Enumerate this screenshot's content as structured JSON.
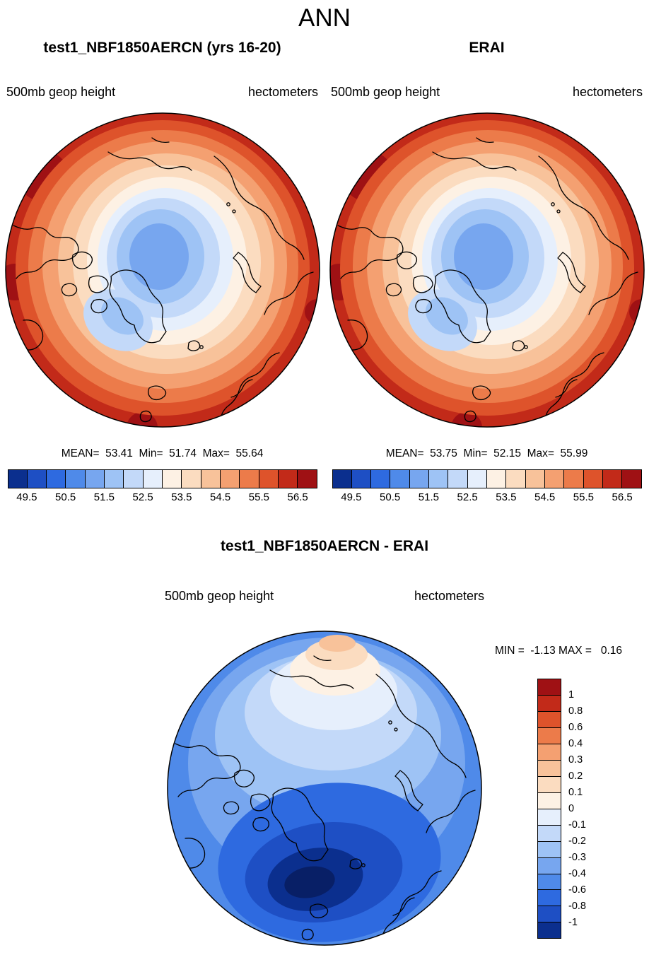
{
  "title": "ANN",
  "palette": [
    "#0b2f8e",
    "#1e4fc4",
    "#2e6ae0",
    "#4f8ae9",
    "#77a6ef",
    "#9ec3f5",
    "#c3d9f9",
    "#e6effc",
    "#fdf1e4",
    "#fbdcc0",
    "#f8c29a",
    "#f4a071",
    "#ec7b4a",
    "#de532b",
    "#c22a19",
    "#9f1114"
  ],
  "panels": {
    "test": {
      "title": "test1_NBF1850AERCN (yrs 16-20)",
      "field": "500mb geop height",
      "units": "hectometers",
      "stats": "MEAN=  53.41  Min=  51.74  Max=  55.64",
      "ticks": [
        "49.5",
        "50.5",
        "51.5",
        "52.5",
        "53.5",
        "54.5",
        "55.5",
        "56.5"
      ]
    },
    "obs": {
      "title": "ERAI",
      "field": "500mb geop height",
      "units": "hectometers",
      "stats": "MEAN=  53.75  Min=  52.15  Max=  55.99",
      "ticks": [
        "49.5",
        "50.5",
        "51.5",
        "52.5",
        "53.5",
        "54.5",
        "55.5",
        "56.5"
      ]
    },
    "diff": {
      "title": "test1_NBF1850AERCN - ERAI",
      "field": "500mb geop height",
      "units": "hectometers",
      "minmax": "MIN =  -1.13 MAX =   0.16",
      "ticks": [
        "1",
        "0.8",
        "0.6",
        "0.4",
        "0.3",
        "0.2",
        "0.1",
        "0",
        "-0.1",
        "-0.2",
        "-0.3",
        "-0.4",
        "-0.6",
        "-0.8",
        "-1"
      ]
    }
  },
  "chart_data": [
    {
      "type": "heatmap",
      "subtype": "polar_stereographic_filled_contour_map",
      "season": "ANN",
      "title": "test1_NBF1850AERCN (yrs 16-20)",
      "variable": "500mb geop height",
      "units": "hectometers",
      "stats": {
        "mean": 53.41,
        "min": 51.74,
        "max": 55.64
      },
      "contour_levels": [
        49.5,
        50.0,
        50.5,
        51.0,
        51.5,
        52.0,
        52.5,
        53.0,
        53.5,
        54.0,
        54.5,
        55.0,
        55.5,
        56.0,
        56.5
      ],
      "labeled_levels": [
        49.5,
        50.5,
        51.5,
        52.5,
        53.5,
        54.5,
        55.5,
        56.5
      ],
      "palette_direction": "blue_low_to_red_high",
      "legend_position": "bottom",
      "description": "Low 500mb heights (blue, ~51.7-53 hm) over the central Arctic increasing outward to high values (orange-red, ~55-56.5 hm) at the low-latitude edge of the polar map."
    },
    {
      "type": "heatmap",
      "subtype": "polar_stereographic_filled_contour_map",
      "season": "ANN",
      "title": "ERAI",
      "variable": "500mb geop height",
      "units": "hectometers",
      "stats": {
        "mean": 53.75,
        "min": 52.15,
        "max": 55.99
      },
      "contour_levels": [
        49.5,
        50.0,
        50.5,
        51.0,
        51.5,
        52.0,
        52.5,
        53.0,
        53.5,
        54.0,
        54.5,
        55.0,
        55.5,
        56.0,
        56.5
      ],
      "labeled_levels": [
        49.5,
        50.5,
        51.5,
        52.5,
        53.5,
        54.5,
        55.5,
        56.5
      ],
      "palette_direction": "blue_low_to_red_high",
      "legend_position": "bottom",
      "description": "Reanalysis pattern matching the model: blue minimum over the central Arctic, warm-colored maximum ring toward the map edge."
    },
    {
      "type": "heatmap",
      "subtype": "polar_stereographic_filled_contour_map",
      "title": "test1_NBF1850AERCN - ERAI",
      "variable": "500mb geop height",
      "units": "hectometers",
      "stats": {
        "min": -1.13,
        "max": 0.16
      },
      "contour_levels": [
        -1,
        -0.8,
        -0.6,
        -0.4,
        -0.3,
        -0.2,
        -0.1,
        0,
        0.1,
        0.2,
        0.3,
        0.4,
        0.6,
        0.8,
        1
      ],
      "palette_direction": "blue_negative_to_red_positive",
      "legend_position": "right",
      "description": "Model minus ERAI difference: negative (blue) almost everywhere, strongest deficit (below -1 hm, dark blue) near the North Atlantic/Scandinavian sector; weakly positive (cream/orange, up to +0.16 hm) only near the top (Pacific) rim."
    }
  ]
}
